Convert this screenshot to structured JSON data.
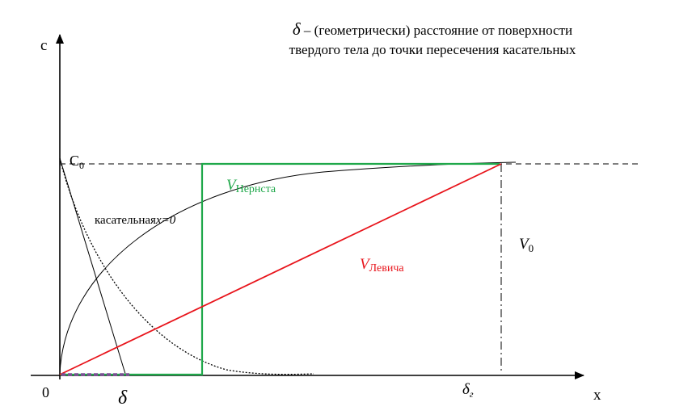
{
  "note": {
    "symbol": "δ",
    "line1": "– (геометрически) расстояние от поверхности",
    "line2": "твердого тела до точки пересечения касательных"
  },
  "axes": {
    "y_label": "c",
    "x_label": "x",
    "origin": "0"
  },
  "labels": {
    "c0_base": "C",
    "c0_sub": "0",
    "tangent_text": "касательная",
    "tangent_formula": "x=0",
    "nernst_main": "V",
    "nernst_sub": "Нернста",
    "levich_main": "V",
    "levich_sub": "Левича",
    "v0_main": "V",
    "v0_sub": "0",
    "delta": "δ",
    "delta_g_main": "δ",
    "delta_g_sub": "г"
  },
  "colors": {
    "nernst": "#1fa84a",
    "levich": "#e8141b",
    "axis": "#000000",
    "dash_dot": "#7a4f93"
  }
}
